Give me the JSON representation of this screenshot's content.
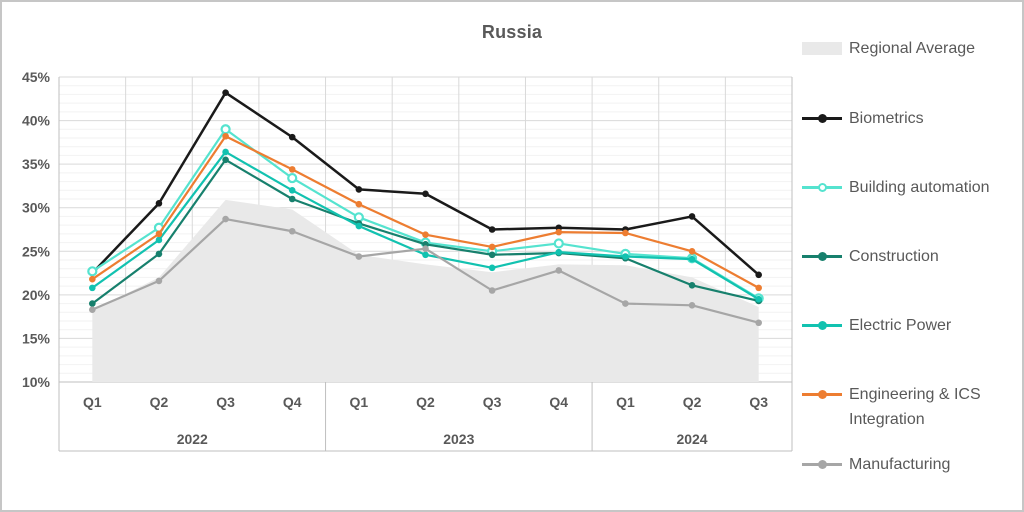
{
  "window": {
    "background": "#ffffff",
    "border_color": "#c6c6c6"
  },
  "title": "Russia",
  "colors": {
    "regional_average": "#e9e9e9",
    "biometrics": "#1a1a1a",
    "building_automation": "#55e3cf",
    "construction": "#17806d",
    "electric_power": "#12c2b0",
    "engineering_ics": "#ed7d31",
    "manufacturing": "#a6a6a6",
    "grid_major": "#d9d9d9",
    "grid_minor": "#f2f2f2",
    "frame": "#bfbfbf",
    "axis_text": "#595959"
  },
  "legend": [
    {
      "label": "Regional Average",
      "series": "regional_average",
      "marker": "area"
    },
    {
      "label": "Biometrics",
      "series": "biometrics",
      "marker": "filled"
    },
    {
      "label": "Building automation",
      "series": "building_automation",
      "marker": "open"
    },
    {
      "label": "Construction",
      "series": "construction",
      "marker": "filled"
    },
    {
      "label": "Electric Power",
      "series": "electric_power",
      "marker": "filled"
    },
    {
      "label": "Engineering & ICS Integration",
      "series": "engineering_ics",
      "marker": "filled"
    },
    {
      "label": "Manufacturing",
      "series": "manufacturing",
      "marker": "filled"
    }
  ],
  "chart_data": {
    "type": "line",
    "title": "Russia",
    "grid": true,
    "legend_position": "right",
    "ylim": [
      10,
      45
    ],
    "y_ticks": [
      "10%",
      "15%",
      "20%",
      "25%",
      "30%",
      "35%",
      "40%",
      "45%"
    ],
    "categories": [
      "Q1",
      "Q2",
      "Q3",
      "Q4",
      "Q1",
      "Q2",
      "Q3",
      "Q4",
      "Q1",
      "Q2",
      "Q3"
    ],
    "year_groups": [
      {
        "label": "2022",
        "span": 4
      },
      {
        "label": "2023",
        "span": 4
      },
      {
        "label": "2024",
        "span": 3
      }
    ],
    "area_series": {
      "name": "Regional Average",
      "color_key": "regional_average",
      "values": [
        18.2,
        22.0,
        30.9,
        29.8,
        24.6,
        23.5,
        22.6,
        23.5,
        23.4,
        22.0,
        18.6
      ]
    },
    "series": [
      {
        "name": "Biometrics",
        "color_key": "biometrics",
        "marker": "filled",
        "values": [
          22.5,
          30.5,
          43.2,
          38.1,
          32.1,
          31.6,
          27.5,
          27.7,
          27.5,
          29.0,
          22.3
        ]
      },
      {
        "name": "Building automation",
        "color_key": "building_automation",
        "marker": "open",
        "values": [
          22.7,
          27.7,
          39.0,
          33.4,
          28.9,
          26.0,
          25.0,
          25.9,
          24.7,
          24.2,
          19.6
        ]
      },
      {
        "name": "Construction",
        "color_key": "construction",
        "marker": "filled",
        "values": [
          19.0,
          24.7,
          35.5,
          31.0,
          28.2,
          25.8,
          24.6,
          24.8,
          24.2,
          21.1,
          19.3
        ]
      },
      {
        "name": "Electric Power",
        "color_key": "electric_power",
        "marker": "filled",
        "values": [
          20.8,
          26.3,
          36.4,
          32.0,
          27.9,
          24.6,
          23.1,
          24.9,
          24.4,
          24.1,
          19.5
        ]
      },
      {
        "name": "Engineering & ICS Integration",
        "color_key": "engineering_ics",
        "marker": "filled",
        "values": [
          21.8,
          27.0,
          38.2,
          34.4,
          30.4,
          26.9,
          25.5,
          27.2,
          27.1,
          25.0,
          20.8
        ]
      },
      {
        "name": "Manufacturing",
        "color_key": "manufacturing",
        "marker": "filled",
        "values": [
          18.3,
          21.6,
          28.7,
          27.3,
          24.4,
          25.3,
          20.5,
          22.8,
          19.0,
          18.8,
          16.8
        ]
      }
    ]
  }
}
